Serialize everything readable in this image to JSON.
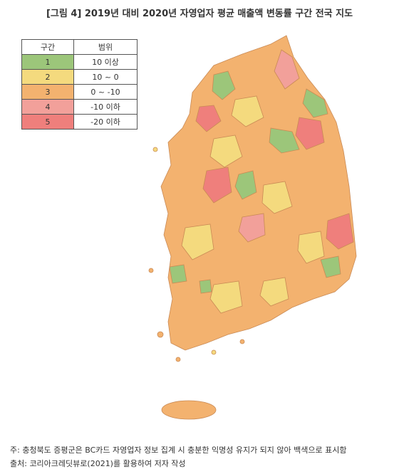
{
  "title": "[그림 4] 2019년 대비 2020년 자영업자 평균 매출액 변동률 구간 전국 지도",
  "legend": {
    "headers": [
      "구간",
      "범위"
    ],
    "rows": [
      [
        "1",
        "10 이상"
      ],
      [
        "2",
        "10 ~ 0"
      ],
      [
        "3",
        "0 ~ -10"
      ],
      [
        "4",
        "-10 이하"
      ],
      [
        "5",
        "-20 이하"
      ]
    ],
    "colors": [
      "#9cc67a",
      "#f4da7e",
      "#f3b26f",
      "#f2a09a",
      "#ef7f7c"
    ]
  },
  "notes": [
    "주: 충청북도 증평군은 BC카드 자영업자 정보 집계 시 충분한 익명성 유지가 되지 않아 백색으로 표시함",
    "출처: 코리아크레딧뷰로(2021)를 활용하여 저자 작성"
  ]
}
